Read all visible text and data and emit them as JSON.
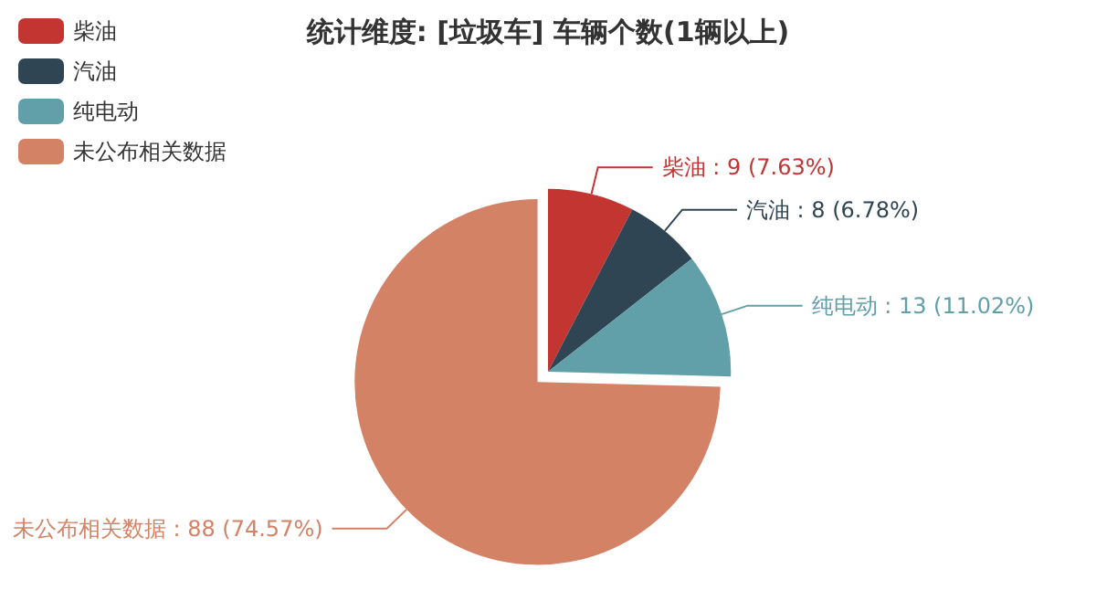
{
  "chart_data": {
    "type": "pie",
    "title": "统计维度: [垃圾车] 车辆个数(1辆以上)",
    "categories": [
      "柴油",
      "汽油",
      "纯电动",
      "未公布相关数据"
    ],
    "values": [
      9,
      8,
      13,
      88
    ],
    "colors": [
      "#c23531",
      "#2f4554",
      "#61a0a8",
      "#d48265"
    ],
    "value_labels": [
      "柴油 : 9 (7.63%)",
      "汽油 : 8 (6.78%)",
      "纯电动 : 13 (11.02%)",
      "未公布相关数据 : 88 (74.57%)"
    ],
    "legend": "top left"
  }
}
